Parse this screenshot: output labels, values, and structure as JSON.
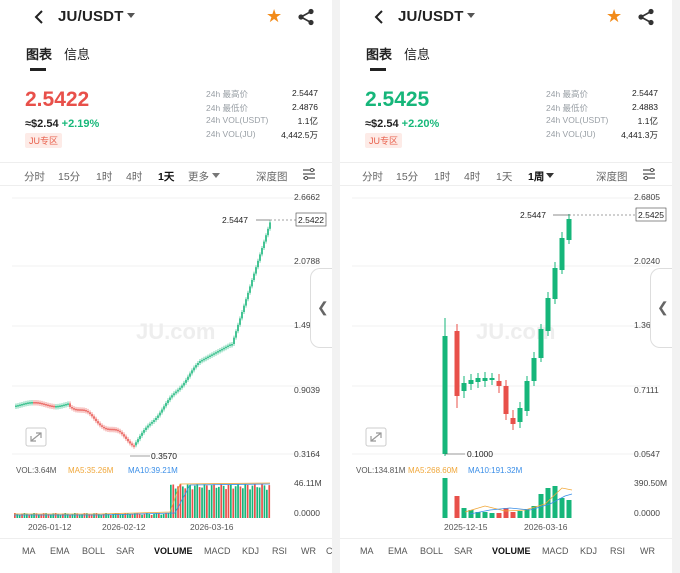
{
  "panels": [
    {
      "pair": "JU/USDT",
      "tabs": [
        "图表",
        "信息"
      ],
      "price": "2.5422",
      "price_color": "#e8504a",
      "usd": "≈$2.54",
      "change": "+2.19%",
      "zone": "JU专区",
      "stats": [
        {
          "label": "24h 最高价",
          "value": "2.5447"
        },
        {
          "label": "24h 最低价",
          "value": "2.4876"
        },
        {
          "label": "24h VOL(USDT)",
          "value": "1.1亿"
        },
        {
          "label": "24h VOL(JU)",
          "value": "4,442.5万"
        }
      ],
      "timeframes": [
        "分时",
        "15分",
        "1时",
        "4时",
        "1天",
        "更多"
      ],
      "active_timeframe": "1天",
      "depth": "深度图",
      "indicators": [
        "MA",
        "EMA",
        "BOLL",
        "SAR",
        "VOLUME",
        "MACD",
        "KDJ",
        "RSI",
        "WR",
        "C"
      ],
      "active_indicator": "VOLUME",
      "chart": {
        "price_axis": [
          "2.6662",
          "2.0788",
          "1.4913",
          "0.9039",
          "0.3164"
        ],
        "high_label": "2.5447",
        "low_label": "0.3570",
        "last_price": "2.5422",
        "vol_legend": {
          "vol": "VOL:3.64M",
          "ma5": "MA5:35.26M",
          "ma10": "MA10:39.21M"
        },
        "vol_axis": [
          "46.11M",
          "0.0000"
        ],
        "dates": [
          "2026-01-12",
          "2026-02-12",
          "2026-03-16"
        ],
        "watermark": "JU.com"
      }
    },
    {
      "pair": "JU/USDT",
      "tabs": [
        "图表",
        "信息"
      ],
      "price": "2.5425",
      "price_color": "#16b67a",
      "usd": "≈$2.54",
      "change": "+2.20%",
      "zone": "JU专区",
      "stats": [
        {
          "label": "24h 最高价",
          "value": "2.5447"
        },
        {
          "label": "24h 最低价",
          "value": "2.4883"
        },
        {
          "label": "24h VOL(USDT)",
          "value": "1.1亿"
        },
        {
          "label": "24h VOL(JU)",
          "value": "4,441.3万"
        }
      ],
      "timeframes": [
        "分时",
        "15分",
        "1时",
        "4时",
        "1天",
        "1周"
      ],
      "active_timeframe": "1周",
      "depth": "深度图",
      "indicators": [
        "MA",
        "EMA",
        "BOLL",
        "SAR",
        "VOLUME",
        "MACD",
        "KDJ",
        "RSI",
        "WR"
      ],
      "active_indicator": "VOLUME",
      "chart": {
        "price_axis": [
          "2.6805",
          "2.0240",
          "1.3675",
          "0.7111",
          "0.0547"
        ],
        "high_label": "2.5447",
        "low_label": "0.1000",
        "last_price": "2.5425",
        "vol_legend": {
          "vol": "VOL:134.81M",
          "ma5": "MA5:268.60M",
          "ma10": "MA10:191.32M"
        },
        "vol_axis": [
          "390.50M",
          "0.0000"
        ],
        "dates": [
          "2025-12-15",
          "2026-03-16"
        ],
        "watermark": "JU.com"
      }
    }
  ],
  "colors": {
    "up": "#16b67a",
    "down": "#e8504a",
    "ma5": "#f0a73a",
    "ma10": "#3a8ee8",
    "star": "#f28b1a"
  }
}
